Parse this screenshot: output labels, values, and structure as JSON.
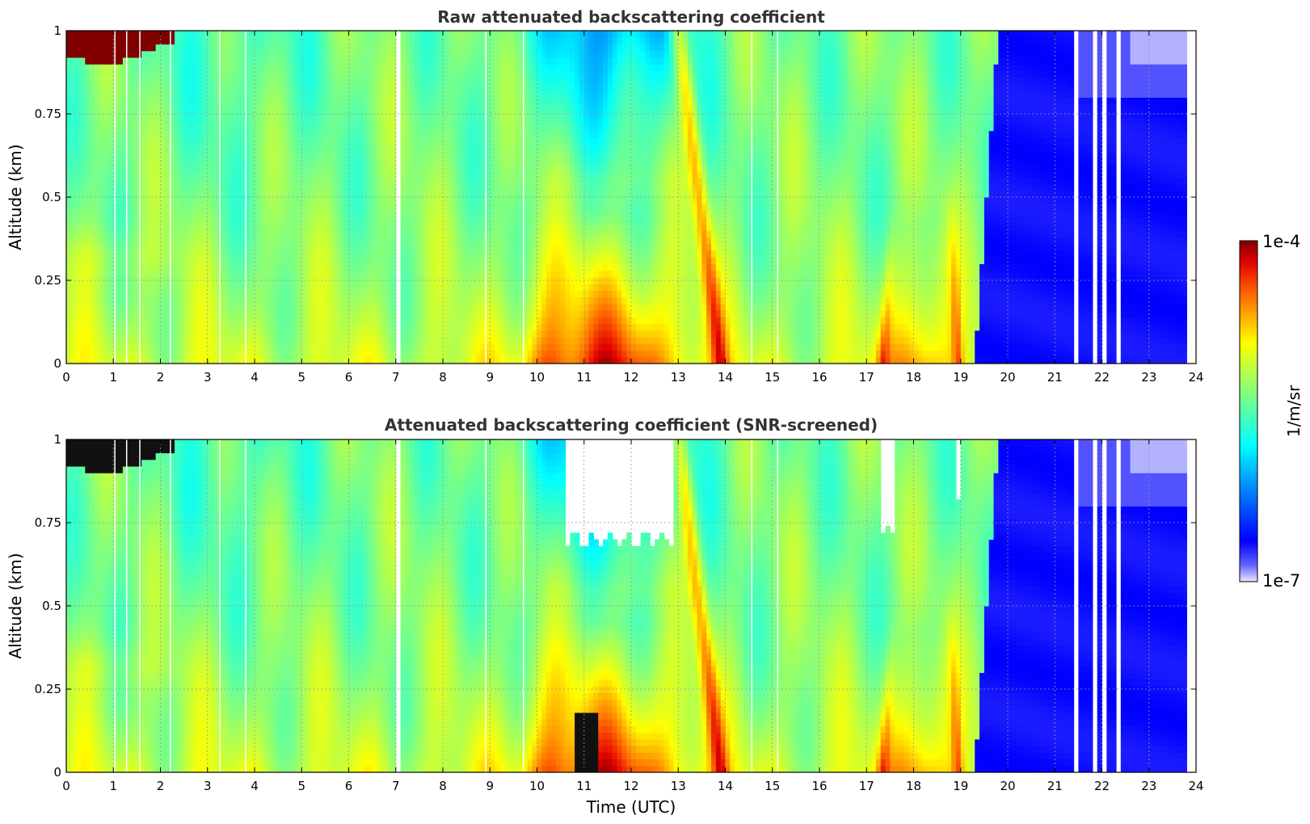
{
  "chart_data": [
    {
      "type": "heatmap",
      "title": "Raw attenuated backscattering coefficient",
      "xlabel": "",
      "ylabel": "Altitude (km)",
      "xlim": [
        0,
        24
      ],
      "ylim": [
        0,
        1
      ],
      "x_ticks": [
        "0",
        "1",
        "2",
        "3",
        "4",
        "5",
        "6",
        "7",
        "8",
        "9",
        "10",
        "11",
        "12",
        "13",
        "14",
        "15",
        "16",
        "17",
        "18",
        "19",
        "20",
        "21",
        "22",
        "23",
        "24"
      ],
      "y_ticks": [
        "0",
        "0.25",
        "0.5",
        "0.75",
        "1"
      ],
      "grid": true,
      "z_scale": "log",
      "z_range": [
        1e-07,
        0.0001
      ],
      "regions": [
        {
          "t0": 0,
          "t1": 2.3,
          "alt0": 0.9,
          "alt1": 1.0,
          "level": 1.0
        },
        {
          "t0": 9.8,
          "t1": 13.2,
          "alt0": 0.6,
          "alt1": 1.0,
          "level": 0.25
        },
        {
          "t0": 10.5,
          "t1": 13.0,
          "alt0": 0.0,
          "alt1": 0.3,
          "level": 0.88
        },
        {
          "t0": 17.0,
          "t1": 19.1,
          "alt0": 0.0,
          "alt1": 0.35,
          "level": 0.78
        },
        {
          "t0": 19.6,
          "t1": 23.8,
          "alt0": 0.0,
          "alt1": 1.0,
          "level": 0.08
        }
      ]
    },
    {
      "type": "heatmap",
      "title": "Attenuated backscattering coefficient (SNR-screened)",
      "xlabel": "Time (UTC)",
      "ylabel": "Altitude (km)",
      "xlim": [
        0,
        24
      ],
      "ylim": [
        0,
        1
      ],
      "x_ticks": [
        "0",
        "1",
        "2",
        "3",
        "4",
        "5",
        "6",
        "7",
        "8",
        "9",
        "10",
        "11",
        "12",
        "13",
        "14",
        "15",
        "16",
        "17",
        "18",
        "19",
        "20",
        "21",
        "22",
        "23",
        "24"
      ],
      "y_ticks": [
        "0",
        "0.25",
        "0.5",
        "0.75",
        "1"
      ],
      "grid": true,
      "z_scale": "log",
      "z_range": [
        1e-07,
        0.0001
      ],
      "screened_regions": [
        {
          "t0": 10.6,
          "t1": 12.9,
          "alt0": 0.7,
          "alt1": 1.0
        },
        {
          "t0": 17.3,
          "t1": 17.6,
          "alt0": 0.72,
          "alt1": 1.0
        },
        {
          "t0": 18.9,
          "t1": 19.0,
          "alt0": 0.8,
          "alt1": 1.0
        }
      ]
    }
  ],
  "colorbar": {
    "label": "1/m/sr",
    "max_label": "1e-4",
    "min_label": "1e-7",
    "colormap": "jet"
  }
}
